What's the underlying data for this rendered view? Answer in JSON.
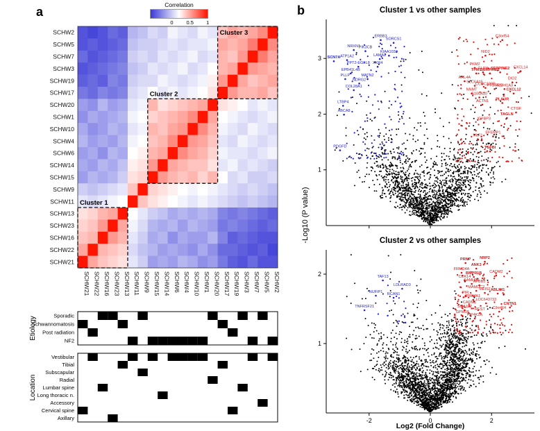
{
  "panels": {
    "a": "a",
    "b": "b"
  },
  "chart_data": [
    {
      "type": "heatmap",
      "name": "sample-correlation-heatmap",
      "colorbar": {
        "title": "Correlation",
        "ticks": [
          "0",
          "0.5",
          "1"
        ],
        "domain": [
          -0.6,
          1
        ],
        "white_point": 0.2,
        "low_color": "#3a3ad6",
        "high_color": "#ff1400"
      },
      "row_labels": [
        "SCHW2",
        "SCHW5",
        "SCHW7",
        "SCHW3",
        "SCHW19",
        "SCHW17",
        "SCHW20",
        "SCHW1",
        "SCHW10",
        "SCHW4",
        "SCHW6",
        "SCHW14",
        "SCHW15",
        "SCHW9",
        "SCHW11",
        "SCHW13",
        "SCHW23",
        "SCHW16",
        "SCHW22",
        "SCHW21"
      ],
      "col_labels": [
        "SCHW21",
        "SCHW22",
        "SCHW16",
        "SCHW23",
        "SCHW13",
        "SCHW11",
        "SCHW9",
        "SCHW15",
        "SCHW14",
        "SCHW6",
        "SCHW4",
        "SCHW10",
        "SCHW1",
        "SCHW20",
        "SCHW17",
        "SCHW19",
        "SCHW3",
        "SCHW7",
        "SCHW5",
        "SCHW2"
      ],
      "correlation_upper_triangle": [
        [
          1,
          0.6,
          0.5,
          0.45,
          0.5,
          0.4,
          0.1,
          0.15,
          0.05,
          0.1,
          0.15,
          0,
          0.05,
          -0.05,
          -0.1,
          -0.45,
          -0.4,
          -0.5,
          -0.55,
          -0.5
        ],
        [
          1,
          0.65,
          0.5,
          0.45,
          0.5,
          0.15,
          0.1,
          0.1,
          0.05,
          0.1,
          0.05,
          0,
          0,
          -0.05,
          -0.4,
          -0.45,
          -0.5,
          -0.45,
          -0.5
        ],
        [
          1,
          0.55,
          0.4,
          0.45,
          0.1,
          0.05,
          0.15,
          0.1,
          0.05,
          0.1,
          0,
          0.05,
          0,
          -0.35,
          -0.4,
          -0.45,
          -0.5,
          -0.4
        ],
        [
          1,
          0.5,
          0.45,
          0.2,
          0.1,
          0.05,
          0.15,
          0.1,
          0.05,
          0.1,
          0,
          -0.05,
          -0.3,
          -0.35,
          -0.4,
          -0.45,
          -0.5
        ],
        [
          1,
          0.55,
          0.25,
          0.15,
          0.1,
          0.05,
          0.1,
          0.15,
          0.05,
          0.05,
          0,
          -0.35,
          -0.3,
          -0.45,
          -0.4,
          -0.45
        ],
        [
          1,
          0.3,
          0.2,
          0.15,
          0.1,
          0.15,
          0.1,
          0.2,
          0.1,
          0.05,
          -0.3,
          -0.35,
          -0.3,
          -0.4,
          -0.35
        ],
        [
          1,
          0.5,
          0.45,
          0.4,
          0.35,
          0.3,
          0.45,
          0.15,
          0.1,
          -0.15,
          -0.2,
          -0.1,
          -0.25,
          -0.2
        ],
        [
          1,
          0.6,
          0.5,
          0.45,
          0.4,
          0.35,
          0.2,
          0.15,
          -0.1,
          -0.15,
          -0.2,
          -0.15,
          -0.25
        ],
        [
          1,
          0.55,
          0.5,
          0.4,
          0.45,
          0.15,
          0.1,
          -0.15,
          -0.1,
          -0.2,
          -0.25,
          -0.15
        ],
        [
          1,
          0.6,
          0.45,
          0.4,
          0.2,
          0.15,
          -0.1,
          -0.2,
          -0.15,
          -0.2,
          -0.1
        ],
        [
          1,
          0.5,
          0.45,
          0.25,
          0.2,
          -0.15,
          -0.1,
          -0.25,
          -0.15,
          -0.2
        ],
        [
          1,
          0.55,
          0.3,
          0.25,
          -0.05,
          -0.15,
          -0.1,
          -0.2,
          -0.15
        ],
        [
          1,
          0.35,
          0.3,
          0,
          -0.1,
          -0.15,
          -0.1,
          -0.2
        ],
        [
          1,
          0.4,
          0.1,
          0.05,
          0,
          -0.05,
          0
        ],
        [
          1,
          0.2,
          0.15,
          0.1,
          0.05,
          0.1
        ],
        [
          1,
          0.5,
          0.45,
          0.35,
          0.3
        ],
        [
          1,
          0.55,
          0.4,
          0.35
        ],
        [
          1,
          0.45,
          0.4
        ],
        [
          1,
          0.5
        ],
        [
          1
        ]
      ],
      "clusters": [
        {
          "label": "Cluster 1",
          "rows": [
            15,
            19
          ],
          "cols": [
            0,
            4
          ],
          "label_placement": "above"
        },
        {
          "label": "Cluster 2",
          "rows": [
            6,
            12
          ],
          "cols": [
            7,
            13
          ],
          "label_placement": "above"
        },
        {
          "label": "Cluster 3",
          "rows": [
            0,
            5
          ],
          "cols": [
            14,
            19
          ],
          "label_placement": "inside"
        }
      ]
    },
    {
      "type": "heatmap",
      "name": "etiology-annotation",
      "ylabel": "Etiology",
      "rows": [
        {
          "label": "Sporadic",
          "filled_cols": [
            2,
            3,
            6,
            13,
            16,
            18
          ]
        },
        {
          "label": "Schwannomatosis",
          "filled_cols": [
            0,
            4,
            14
          ]
        },
        {
          "label": "Post radiation",
          "filled_cols": [
            1,
            15
          ]
        },
        {
          "label": "NF2",
          "filled_cols": [
            5,
            7,
            8,
            9,
            10,
            11,
            12,
            17,
            19
          ]
        }
      ]
    },
    {
      "type": "heatmap",
      "name": "location-annotation",
      "ylabel": "Location",
      "rows": [
        {
          "label": "Vestibular",
          "filled_cols": [
            1,
            5,
            7,
            9,
            10,
            11,
            12,
            17,
            19
          ]
        },
        {
          "label": "Tibial",
          "filled_cols": [
            4,
            14
          ]
        },
        {
          "label": "Subscapular",
          "filled_cols": [
            6
          ]
        },
        {
          "label": "Radial",
          "filled_cols": [
            13
          ]
        },
        {
          "label": "Lumbar spine",
          "filled_cols": [
            2,
            16
          ]
        },
        {
          "label": "Long thoracic n.",
          "filled_cols": [
            8
          ]
        },
        {
          "label": "Accessory",
          "filled_cols": [
            18
          ]
        },
        {
          "label": "Cervical spine",
          "filled_cols": [
            0,
            15
          ]
        },
        {
          "label": "Axillary",
          "filled_cols": [
            3
          ]
        }
      ]
    },
    {
      "type": "scatter",
      "name": "volcano-cluster1",
      "title": "Cluster 1 vs other samples",
      "xlabel": "Log2 (Fold Change)",
      "ylabel": "-Log10 (P value)",
      "xlim": [
        -3.4,
        3.4
      ],
      "ylim": [
        0,
        3.7
      ],
      "xticks": [
        -2,
        0,
        2
      ],
      "yticks": [
        1,
        2,
        3
      ],
      "up_color": "#dd1111",
      "down_color": "#2222cc",
      "background": {
        "n": 2000,
        "seed": 42,
        "x_sigma": 1.0,
        "slope": 0.5,
        "noise": 0.3
      },
      "up_cloud": {
        "n": 160,
        "seed": 7,
        "x_min": 0.85,
        "x_max": 3.05,
        "y_min": 1.15,
        "y_max": 3.4
      },
      "down_cloud": {
        "n": 120,
        "seed": 9,
        "x_min": -2.75,
        "x_max": -0.85,
        "y_min": 1.2,
        "y_max": 3.45
      },
      "genes_down": [
        {
          "name": "SCN7A",
          "x": -3.15,
          "y": 3.0,
          "bold": true
        },
        {
          "name": "ERBB3",
          "x": -1.62,
          "y": 3.38
        },
        {
          "name": "SORCS1",
          "x": -1.2,
          "y": 3.33
        },
        {
          "name": "NRXN1",
          "x": -2.5,
          "y": 3.2
        },
        {
          "name": "PIK3CB",
          "x": -2.12,
          "y": 3.18
        },
        {
          "name": "KIAA1033",
          "x": -1.35,
          "y": 3.1
        },
        {
          "name": "ATP1A2",
          "x": -2.72,
          "y": 3.02
        },
        {
          "name": "LAMA2",
          "x": -1.65,
          "y": 3.04
        },
        {
          "name": "PPT2-EGFL8",
          "x": -2.35,
          "y": 2.9
        },
        {
          "name": "XKR4",
          "x": -1.72,
          "y": 2.9
        },
        {
          "name": "EPB41L4B",
          "x": -2.6,
          "y": 2.78
        },
        {
          "name": "PLLP",
          "x": -2.78,
          "y": 2.68
        },
        {
          "name": "MATN2",
          "x": -2.05,
          "y": 2.68
        },
        {
          "name": "NDRG2",
          "x": -2.32,
          "y": 2.6
        },
        {
          "name": "COL28A1",
          "x": -2.5,
          "y": 2.48
        },
        {
          "name": "LTBP4",
          "x": -2.85,
          "y": 2.2
        },
        {
          "name": "ABCA8",
          "x": -2.82,
          "y": 2.04
        },
        {
          "name": "PDGFD",
          "x": -2.95,
          "y": 1.4
        }
      ],
      "genes_up": [
        {
          "name": "C3orf54",
          "x": 2.35,
          "y": 3.38
        },
        {
          "name": "NID2",
          "x": 1.8,
          "y": 3.1
        },
        {
          "name": "PKM2",
          "x": 1.45,
          "y": 2.88
        },
        {
          "name": "GLRX",
          "x": 1.72,
          "y": 2.8
        },
        {
          "name": "SERPINE2",
          "x": 2.28,
          "y": 2.8,
          "bold": true
        },
        {
          "name": "TPM1",
          "x": 1.5,
          "y": 2.78,
          "bold": true
        },
        {
          "name": "SERPINE1",
          "x": 1.95,
          "y": 2.78,
          "bold": true
        },
        {
          "name": "CXCL14",
          "x": 2.95,
          "y": 2.82
        },
        {
          "name": "DIO2",
          "x": 2.68,
          "y": 2.62
        },
        {
          "name": "ARL4A",
          "x": 1.12,
          "y": 2.64
        },
        {
          "name": "SLC6A15",
          "x": 1.45,
          "y": 2.56
        },
        {
          "name": "CCDC109B",
          "x": 1.8,
          "y": 2.52
        },
        {
          "name": "PTGFRN",
          "x": 2.1,
          "y": 2.5
        },
        {
          "name": "ALDH1A3",
          "x": 2.42,
          "y": 2.5
        },
        {
          "name": "CXCL12",
          "x": 2.72,
          "y": 2.42,
          "bold": true
        },
        {
          "name": "NNMT",
          "x": 1.35,
          "y": 2.42
        },
        {
          "name": "S100A10",
          "x": 1.6,
          "y": 2.35
        },
        {
          "name": "ACTN1",
          "x": 1.7,
          "y": 2.22
        },
        {
          "name": "PLAUR",
          "x": 2.35,
          "y": 2.25,
          "bold": true
        },
        {
          "name": "CTGF",
          "x": 2.8,
          "y": 2.08
        },
        {
          "name": "TAGLN",
          "x": 2.5,
          "y": 1.98,
          "bold": true
        },
        {
          "name": "IGFBP3",
          "x": 1.75,
          "y": 1.9
        },
        {
          "name": "EFEMP1",
          "x": 2.05,
          "y": 1.65
        },
        {
          "name": "MLF1",
          "x": 1.55,
          "y": 1.6
        },
        {
          "name": "TGFBI",
          "x": 1.95,
          "y": 1.38,
          "bold": true
        }
      ]
    },
    {
      "type": "scatter",
      "name": "volcano-cluster2",
      "title": "Cluster 2 vs other samples",
      "xlabel": "Log2 (Fold Change)",
      "ylabel": "-Log10 (P value)",
      "xlim": [
        -3.4,
        3.4
      ],
      "ylim": [
        0,
        2.35
      ],
      "xticks": [
        -2,
        0,
        2
      ],
      "yticks": [
        1,
        2
      ],
      "up_color": "#dd1111",
      "down_color": "#2222cc",
      "background": {
        "n": 2300,
        "seed": 5,
        "x_sigma": 0.8,
        "slope": 0.42,
        "noise": 0.22,
        "blob": {
          "n": 320,
          "cx": 0.75,
          "cy": 0.95,
          "sx": 0.25,
          "sy": 0.18
        }
      },
      "up_cloud": {
        "n": 140,
        "seed": 3,
        "x_min": 0.8,
        "x_max": 2.7,
        "y_min": 1.15,
        "y_max": 2.25
      },
      "down_cloud": {
        "n": 20,
        "seed": 13,
        "x_min": -2.2,
        "x_max": -0.8,
        "y_min": 1.3,
        "y_max": 2.0
      },
      "genes_down": [
        {
          "name": "TAF13",
          "x": -1.55,
          "y": 1.95
        },
        {
          "name": "LDLRAD3",
          "x": -0.92,
          "y": 1.83
        },
        {
          "name": "NUFIP1",
          "x": -1.78,
          "y": 1.73
        },
        {
          "name": "RCAN1",
          "x": -1.2,
          "y": 1.7
        },
        {
          "name": "TNFRSF21",
          "x": -2.15,
          "y": 1.52
        }
      ],
      "genes_up": [
        {
          "name": "PRNP",
          "x": 1.15,
          "y": 2.2,
          "bold": true
        },
        {
          "name": "NRP2",
          "x": 1.78,
          "y": 2.22,
          "bold": true
        },
        {
          "name": "ANK3",
          "x": 1.5,
          "y": 2.12,
          "bold": true
        },
        {
          "name": "FRMD4A",
          "x": 1.02,
          "y": 2.06
        },
        {
          "name": "BMPR1B",
          "x": 1.42,
          "y": 2.0,
          "bold": true
        },
        {
          "name": "CADM2",
          "x": 2.15,
          "y": 2.02
        },
        {
          "name": "CDK14",
          "x": 1.12,
          "y": 1.95
        },
        {
          "name": "SAMHD1",
          "x": 1.35,
          "y": 1.9
        },
        {
          "name": "APBB2",
          "x": 1.6,
          "y": 1.88
        },
        {
          "name": "MAMDC2",
          "x": 1.5,
          "y": 1.8
        },
        {
          "name": "MEIS2",
          "x": 1.78,
          "y": 1.77
        },
        {
          "name": "ABLIM1",
          "x": 2.2,
          "y": 1.76,
          "bold": true
        },
        {
          "name": "PIR",
          "x": 1.15,
          "y": 1.72
        },
        {
          "name": "PRIMA1",
          "x": 1.4,
          "y": 1.67
        },
        {
          "name": "LOC643733",
          "x": 1.82,
          "y": 1.62
        },
        {
          "name": "CADM1",
          "x": 1.28,
          "y": 1.58
        },
        {
          "name": "SIPA1L2",
          "x": 1.12,
          "y": 1.52
        },
        {
          "name": "CNTN1",
          "x": 2.6,
          "y": 1.56,
          "bold": true
        },
        {
          "name": "C9orf64",
          "x": 2.25,
          "y": 1.5
        },
        {
          "name": "REST",
          "x": 1.62,
          "y": 1.48
        },
        {
          "name": "GPM6B",
          "x": 1.05,
          "y": 1.44
        },
        {
          "name": "PIP4K2A",
          "x": 1.45,
          "y": 1.4
        }
      ]
    }
  ]
}
